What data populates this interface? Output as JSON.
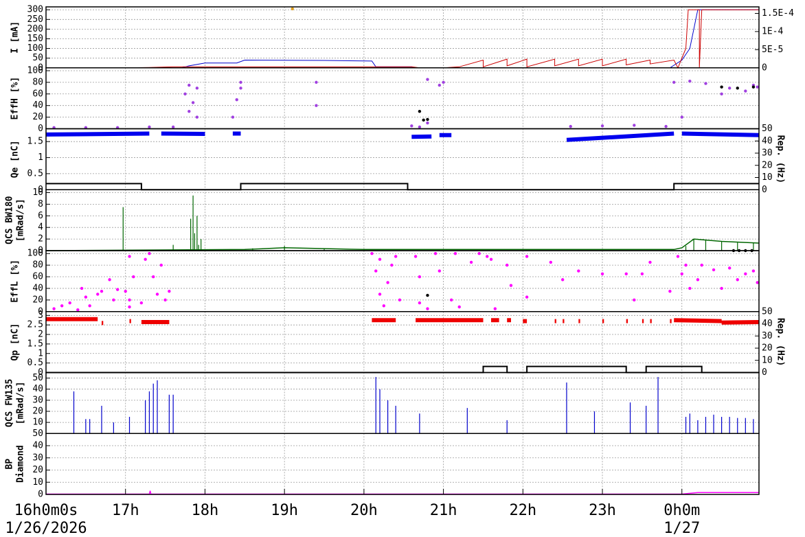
{
  "chart_data": [
    {
      "type": "strip",
      "ylabel": [
        "I [mA]"
      ],
      "xlim": [
        16,
        24.97
      ],
      "ylim": [
        0,
        315
      ],
      "yticks": [
        0,
        50,
        100,
        150,
        200,
        250,
        300
      ],
      "grid": true,
      "y2lim": [
        0,
        0.000168
      ],
      "y2ticks": [
        0,
        {
          "value": 5e-05,
          "label": "5E-5"
        },
        {
          "value": 0.0001,
          "label": "1E-4"
        },
        {
          "value": 0.00015,
          "label": "1.5E-4"
        }
      ],
      "series": [
        {
          "color": "#0000cc",
          "mode": "line",
          "width": 1,
          "x": [
            16,
            17.7,
            17.8,
            18.0,
            18.4,
            18.5,
            19.5,
            20.1,
            20.15,
            20.6,
            20.65,
            23.85,
            24.0,
            24.1,
            24.2,
            24.97
          ],
          "values": [
            0,
            0,
            10,
            25,
            25,
            40,
            38,
            35,
            5,
            5,
            0,
            0,
            40,
            100,
            300,
            300
          ]
        },
        {
          "color": "#cc0000",
          "mode": "line",
          "width": 1,
          "x": [
            16,
            17.0,
            17.3,
            17.6,
            18.3,
            20.6,
            20.7,
            21.0,
            21.2,
            21.5,
            21.5,
            21.8,
            21.8,
            22.05,
            22.05,
            22.4,
            22.4,
            22.7,
            22.7,
            23.0,
            23.0,
            23.3,
            23.3,
            23.6,
            23.6,
            23.9,
            23.95,
            24.05,
            24.08,
            24.15,
            24.22,
            24.22,
            24.25,
            24.97
          ],
          "values": [
            0,
            0,
            2,
            5,
            5,
            5,
            0,
            0,
            5,
            40,
            5,
            45,
            10,
            45,
            5,
            45,
            10,
            45,
            10,
            45,
            10,
            45,
            15,
            40,
            20,
            40,
            0,
            100,
            300,
            300,
            300,
            0,
            300,
            300
          ]
        },
        {
          "color": "#e0a020",
          "mode": "points",
          "x": [
            19.1
          ],
          "values": [
            305
          ]
        }
      ]
    },
    {
      "type": "strip",
      "ylabel": [
        "EffH [%]"
      ],
      "xlim": [
        16,
        24.97
      ],
      "ylim": [
        0,
        105
      ],
      "yticks": [
        0,
        20,
        40,
        60,
        80,
        100
      ],
      "grid": true,
      "series": [
        {
          "color": "#a040e0",
          "mode": "points",
          "x": [
            16.1,
            16.5,
            16.9,
            17.3,
            17.6,
            17.75,
            17.8,
            17.85,
            17.9,
            17.9,
            17.8,
            18.35,
            18.4,
            18.45,
            18.45,
            19.4,
            19.4,
            20.6,
            20.7,
            20.8,
            20.8,
            20.95,
            21.0,
            22.6,
            23.0,
            23.4,
            23.8,
            23.9,
            24.0,
            24.1,
            24.3,
            24.6,
            24.9,
            24.5,
            24.8,
            24.95
          ],
          "values": [
            2,
            2,
            2,
            3,
            3,
            60,
            30,
            45,
            20,
            70,
            75,
            20,
            50,
            70,
            80,
            80,
            40,
            5,
            3,
            10,
            85,
            75,
            80,
            4,
            5,
            6,
            4,
            80,
            20,
            82,
            78,
            70,
            75,
            60,
            65,
            72
          ]
        },
        {
          "color": "#000000",
          "mode": "points",
          "x": [
            20.7,
            20.75,
            20.8,
            24.5,
            24.7,
            24.9
          ],
          "values": [
            30,
            15,
            16,
            72,
            70,
            72
          ]
        }
      ]
    },
    {
      "type": "strip",
      "ylabel": [
        "Qe [nC]"
      ],
      "xlim": [
        16,
        24.97
      ],
      "ylim": [
        0,
        1.9
      ],
      "yticks": [
        0,
        0.5,
        1,
        1.5
      ],
      "grid": true,
      "y2label": "Rep. (Hz)",
      "y2lim": [
        0,
        50
      ],
      "y2ticks": [
        0,
        10,
        20,
        30,
        40,
        50
      ],
      "series": [
        {
          "color": "#0000ee",
          "mode": "line",
          "width": 6,
          "x": [
            16,
            17.3,
            null,
            17.45,
            18.0,
            null,
            18.35,
            18.45,
            null,
            20.6,
            20.85,
            null,
            20.95,
            21.1,
            null,
            22.55,
            23.9,
            null,
            24.0,
            24.97
          ],
          "values": [
            1.72,
            1.75,
            null,
            1.75,
            1.74,
            null,
            1.75,
            1.75,
            null,
            1.65,
            1.66,
            null,
            1.7,
            1.7,
            null,
            1.55,
            1.75,
            null,
            1.75,
            1.7
          ]
        },
        {
          "color": "#000000",
          "mode": "line",
          "width": 2,
          "axis": "y2",
          "x": [
            16,
            17.2,
            17.2,
            18.45,
            18.45,
            20.55,
            20.55,
            23.9,
            23.9,
            24.97
          ],
          "values": [
            5,
            5,
            0,
            0,
            5,
            5,
            0,
            0,
            5,
            5
          ]
        }
      ]
    },
    {
      "type": "strip",
      "ylabel": [
        "QCS BW180",
        "[mRad/s]"
      ],
      "xlim": [
        16,
        24.97
      ],
      "ylim": [
        0,
        10.5
      ],
      "yticks": [
        0,
        2,
        4,
        6,
        8,
        10
      ],
      "grid": true,
      "series": [
        {
          "color": "#006600",
          "mode": "stem",
          "x": [
            16.97,
            17.6,
            17.82,
            17.85,
            17.87,
            17.9,
            17.92,
            17.95,
            18.6,
            19.0,
            19.5,
            20.0,
            24.05,
            24.15,
            24.3,
            24.5,
            24.7,
            24.9
          ],
          "values": [
            7.5,
            1,
            5.5,
            9.5,
            3,
            6,
            1,
            2,
            0.4,
            0.8,
            0.3,
            0.2,
            0.8,
            2,
            1.8,
            1.6,
            1.4,
            1.3
          ]
        },
        {
          "color": "#006600",
          "mode": "line",
          "width": 1.5,
          "x": [
            16,
            18.5,
            19.0,
            20.0,
            23.9,
            24.0,
            24.15,
            24.5,
            24.97
          ],
          "values": [
            0,
            0.2,
            0.5,
            0.2,
            0.2,
            0.5,
            2,
            1.6,
            1.3
          ]
        },
        {
          "color": "#000000",
          "mode": "points",
          "x": [
            24.65,
            24.72,
            24.8,
            24.88
          ],
          "values": [
            0,
            0,
            0,
            0
          ]
        }
      ]
    },
    {
      "type": "strip",
      "ylabel": [
        "EffL [%]"
      ],
      "xlim": [
        16,
        24.97
      ],
      "ylim": [
        0,
        105
      ],
      "yticks": [
        0,
        20,
        40,
        60,
        80,
        100
      ],
      "grid": true,
      "series": [
        {
          "color": "#ff00ff",
          "mode": "points",
          "x": [
            16.1,
            16.2,
            16.3,
            16.4,
            16.45,
            16.5,
            16.55,
            16.65,
            16.7,
            16.8,
            16.85,
            16.9,
            17.0,
            17.05,
            17.05,
            17.1,
            17.05,
            17.2,
            17.25,
            17.3,
            17.35,
            17.4,
            17.45,
            17.5,
            17.55,
            20.1,
            20.15,
            20.2,
            20.2,
            20.25,
            20.3,
            20.35,
            20.4,
            20.45,
            20.65,
            20.7,
            20.7,
            20.8,
            20.9,
            20.95,
            21.1,
            21.15,
            21.2,
            21.35,
            21.45,
            21.55,
            21.6,
            21.65,
            21.8,
            21.85,
            22.05,
            22.05,
            22.35,
            22.5,
            22.7,
            23.0,
            23.3,
            23.4,
            23.5,
            23.6,
            23.85,
            23.95,
            24.0,
            24.05,
            24.1,
            24.2,
            24.25,
            24.4,
            24.5,
            24.6,
            24.7,
            24.8,
            24.9,
            24.95
          ],
          "values": [
            5,
            10,
            15,
            3,
            40,
            25,
            10,
            30,
            35,
            55,
            20,
            38,
            35,
            8,
            20,
            60,
            95,
            15,
            90,
            100,
            60,
            30,
            80,
            20,
            35,
            100,
            70,
            90,
            30,
            10,
            50,
            80,
            95,
            20,
            95,
            60,
            15,
            5,
            100,
            70,
            20,
            100,
            8,
            85,
            100,
            95,
            90,
            5,
            80,
            45,
            95,
            25,
            85,
            55,
            70,
            65,
            65,
            20,
            65,
            85,
            35,
            95,
            65,
            80,
            40,
            55,
            80,
            72,
            40,
            75,
            55,
            65,
            70,
            50
          ]
        },
        {
          "color": "#000000",
          "mode": "points",
          "x": [
            20.8
          ],
          "values": [
            28
          ]
        }
      ]
    },
    {
      "type": "strip",
      "ylabel": [
        "Qp [nC]"
      ],
      "xlim": [
        16,
        24.97
      ],
      "ylim": [
        0,
        3.2
      ],
      "yticks": [
        0,
        0.5,
        1,
        1.5,
        2,
        2.5,
        3
      ],
      "grid": true,
      "y2label": "Rep. (Hz)",
      "y2lim": [
        0,
        50
      ],
      "y2ticks": [
        0,
        10,
        20,
        30,
        40,
        50
      ],
      "series": [
        {
          "color": "#ee0000",
          "mode": "line",
          "width": 6,
          "x": [
            16,
            16.65,
            null,
            16.7,
            16.72,
            null,
            17.05,
            17.07,
            null,
            17.2,
            17.55,
            null,
            20.1,
            20.4,
            null,
            20.65,
            21.5,
            null,
            21.6,
            21.7,
            null,
            21.8,
            21.85,
            null,
            22.0,
            22.05,
            null,
            22.4,
            22.42,
            null,
            22.5,
            22.52,
            null,
            22.7,
            22.72,
            null,
            23.0,
            23.02,
            null,
            23.3,
            23.32,
            null,
            23.5,
            23.52,
            null,
            23.6,
            23.62,
            null,
            23.85,
            23.87,
            null,
            23.9,
            24.5,
            null,
            24.5,
            24.97
          ],
          "values": [
            2.8,
            2.8,
            null,
            2.6,
            2.6,
            null,
            2.7,
            2.7,
            null,
            2.65,
            2.65,
            null,
            2.75,
            2.75,
            null,
            2.75,
            2.75,
            null,
            2.75,
            2.75,
            null,
            2.75,
            2.75,
            null,
            2.7,
            2.7,
            null,
            2.7,
            2.7,
            null,
            2.7,
            2.7,
            null,
            2.7,
            2.7,
            null,
            2.7,
            2.7,
            null,
            2.7,
            2.7,
            null,
            2.7,
            2.7,
            null,
            2.7,
            2.7,
            null,
            2.7,
            2.7,
            null,
            2.75,
            2.7,
            null,
            2.62,
            2.65
          ]
        },
        {
          "color": "#000000",
          "mode": "line",
          "width": 2,
          "axis": "y2",
          "x": [
            16,
            21.5,
            21.5,
            21.8,
            21.8,
            22.05,
            22.05,
            23.3,
            23.3,
            23.55,
            23.55,
            24.25,
            24.25,
            24.97
          ],
          "values": [
            0,
            0,
            5,
            5,
            0,
            0,
            5,
            5,
            0,
            0,
            5,
            5,
            0,
            0
          ]
        }
      ]
    },
    {
      "type": "strip",
      "ylabel": [
        "QCS FW135",
        "[mRad/s]"
      ],
      "xlim": [
        16,
        24.97
      ],
      "ylim": [
        0,
        55
      ],
      "yticks": [
        10,
        20,
        30,
        40,
        50
      ],
      "grid": true,
      "series": [
        {
          "color": "#0000cc",
          "mode": "stem",
          "x": [
            16.35,
            16.5,
            16.55,
            16.7,
            16.85,
            17.05,
            17.25,
            17.3,
            17.35,
            17.4,
            17.55,
            17.6,
            20.15,
            20.2,
            20.3,
            20.4,
            20.7,
            21.3,
            21.8,
            22.55,
            22.9,
            23.35,
            23.55,
            23.7,
            24.05,
            24.1,
            24.2,
            24.3,
            24.4,
            24.5,
            24.6,
            24.7,
            24.8,
            24.9,
            24.97
          ],
          "values": [
            38,
            13,
            13,
            25,
            10,
            15,
            30,
            38,
            45,
            48,
            35,
            35,
            51,
            40,
            30,
            25,
            18,
            23,
            12,
            46,
            20,
            28,
            25,
            51,
            15,
            18,
            12,
            15,
            17,
            15,
            15,
            14,
            14,
            13,
            12
          ]
        }
      ]
    },
    {
      "type": "strip",
      "ylabel": [
        "BP",
        "Diamond"
      ],
      "xlim": [
        16,
        24.97
      ],
      "ylim": [
        0,
        50
      ],
      "yticks": [
        0,
        10,
        20,
        30,
        40,
        50
      ],
      "grid": true,
      "xticks": [
        {
          "value": 16,
          "label": "16h0m0s"
        },
        {
          "value": 17,
          "label": "17h"
        },
        {
          "value": 18,
          "label": "18h"
        },
        {
          "value": 19,
          "label": "19h"
        },
        {
          "value": 20,
          "label": "20h"
        },
        {
          "value": 21,
          "label": "21h"
        },
        {
          "value": 22,
          "label": "22h"
        },
        {
          "value": 23,
          "label": "23h"
        },
        {
          "value": 24,
          "label": "0h0m"
        }
      ],
      "dates": [
        {
          "value": 16,
          "label": "1/26/2026"
        },
        {
          "value": 24,
          "label": "1/27"
        }
      ],
      "series": [
        {
          "color": "#ff00ff",
          "mode": "line",
          "width": 1.5,
          "x": [
            16,
            17.3,
            17.31,
            17.32,
            24.0,
            24.2,
            24.97
          ],
          "values": [
            0.3,
            0.3,
            3,
            0.3,
            0.3,
            1.5,
            1.5
          ]
        }
      ]
    }
  ]
}
